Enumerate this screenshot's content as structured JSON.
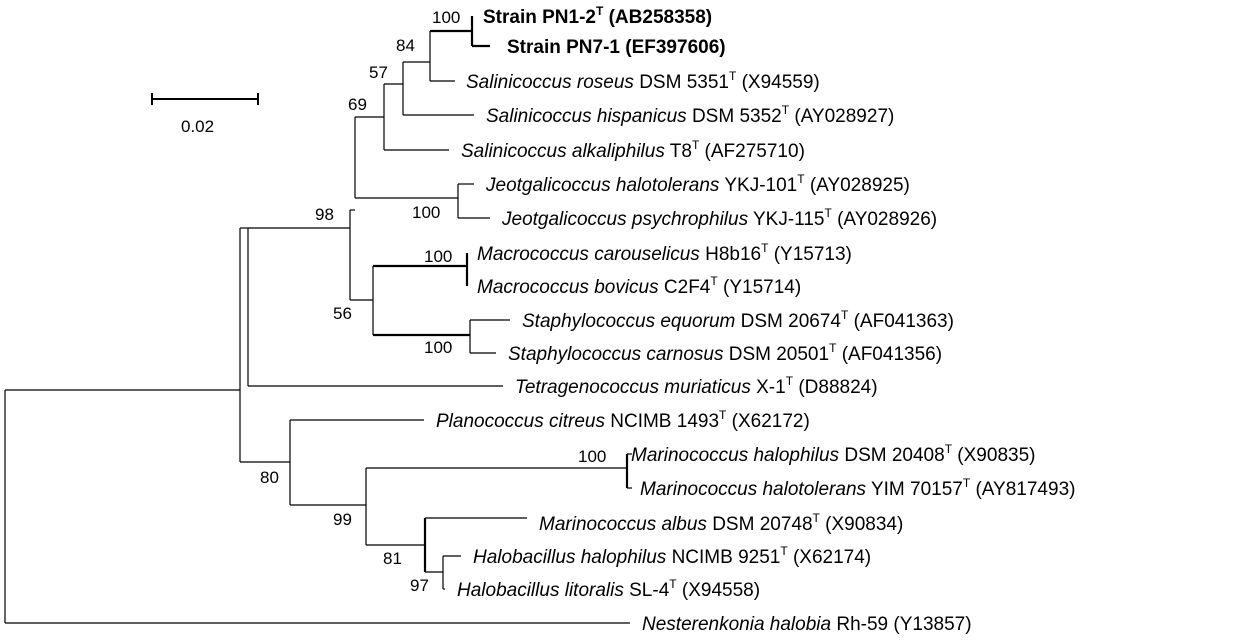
{
  "tree": {
    "scale_label": "0.02",
    "leaves": [
      {
        "id": "pn12",
        "italic": "",
        "rest": "Strain PN1-2",
        "sup": "T",
        "acc": " (AB258358)",
        "bold": true
      },
      {
        "id": "pn71",
        "italic": "",
        "rest": "Strain PN7-1 (EF397606)",
        "sup": "",
        "acc": "",
        "bold": true
      },
      {
        "id": "sroseus",
        "italic": "Salinicoccus roseus",
        "rest": " DSM 5351",
        "sup": "T",
        "acc": " (X94559)",
        "bold": false
      },
      {
        "id": "shisp",
        "italic": "Salinicoccus hispanicus",
        "rest": " DSM 5352",
        "sup": "T",
        "acc": " (AY028927)",
        "bold": false
      },
      {
        "id": "salk",
        "italic": "Salinicoccus alkaliphilus",
        "rest": " T8",
        "sup": "T",
        "acc": " (AF275710)",
        "bold": false
      },
      {
        "id": "jhalo",
        "italic": "Jeotgalicoccus halotolerans",
        "rest": " YKJ-101",
        "sup": "T",
        "acc": " (AY028925)",
        "bold": false
      },
      {
        "id": "jpsy",
        "italic": "Jeotgalicoccus psychrophilus",
        "rest": " YKJ-115",
        "sup": "T",
        "acc": " (AY028926)",
        "bold": false
      },
      {
        "id": "mcar",
        "italic": "Macrococcus carouselicus",
        "rest": " H8b16",
        "sup": "T",
        "acc": " (Y15713)",
        "bold": false
      },
      {
        "id": "mbov",
        "italic": "Macrococcus bovicus",
        "rest": " C2F4",
        "sup": "T",
        "acc": " (Y15714)",
        "bold": false
      },
      {
        "id": "sequ",
        "italic": "Staphylococcus equorum",
        "rest": " DSM 20674",
        "sup": "T",
        "acc": " (AF041363)",
        "bold": false
      },
      {
        "id": "scar",
        "italic": "Staphylococcus carnosus",
        "rest": " DSM 20501",
        "sup": "T",
        "acc": " (AF041356)",
        "bold": false
      },
      {
        "id": "tmur",
        "italic": "Tetragenococcus muriaticus",
        "rest": " X-1",
        "sup": "T",
        "acc": " (D88824)",
        "bold": false
      },
      {
        "id": "pcit",
        "italic": "Planococcus citreus",
        "rest": " NCIMB 1493",
        "sup": "T",
        "acc": " (X62172)",
        "bold": false
      },
      {
        "id": "mhalo",
        "italic": "Marinococcus halophilus",
        "rest": " DSM 20408",
        "sup": "T",
        "acc": " (X90835)",
        "bold": false
      },
      {
        "id": "mhtol",
        "italic": "Marinococcus halotolerans",
        "rest": " YIM 70157",
        "sup": "T",
        "acc": " (AY817493)",
        "bold": false
      },
      {
        "id": "malb",
        "italic": "Marinococcus albus",
        "rest": " DSM 20748",
        "sup": "T",
        "acc": " (X90834)",
        "bold": false
      },
      {
        "id": "hhal",
        "italic": "Halobacillus halophilus",
        "rest": " NCIMB 9251",
        "sup": "T",
        "acc": " (X62174)",
        "bold": false
      },
      {
        "id": "hlit",
        "italic": "Halobacillus litoralis",
        "rest": " SL-4",
        "sup": "T",
        "acc": " (X94558)",
        "bold": false
      },
      {
        "id": "nhal",
        "italic": "Nesterenkonia halobia",
        "rest": " Rh-59 (Y13857)",
        "sup": "",
        "acc": "",
        "bold": false
      }
    ],
    "bootstrap": [
      {
        "id": "bs-pn",
        "value": "100"
      },
      {
        "id": "bs-84",
        "value": "84"
      },
      {
        "id": "bs-57",
        "value": "57"
      },
      {
        "id": "bs-69",
        "value": "69"
      },
      {
        "id": "bs-98",
        "value": "98"
      },
      {
        "id": "bs-jeot",
        "value": "100"
      },
      {
        "id": "bs-macro",
        "value": "100"
      },
      {
        "id": "bs-56",
        "value": "56"
      },
      {
        "id": "bs-staph",
        "value": "100"
      },
      {
        "id": "bs-mar",
        "value": "100"
      },
      {
        "id": "bs-80",
        "value": "80"
      },
      {
        "id": "bs-99",
        "value": "99"
      },
      {
        "id": "bs-81",
        "value": "81"
      },
      {
        "id": "bs-97",
        "value": "97"
      }
    ]
  }
}
